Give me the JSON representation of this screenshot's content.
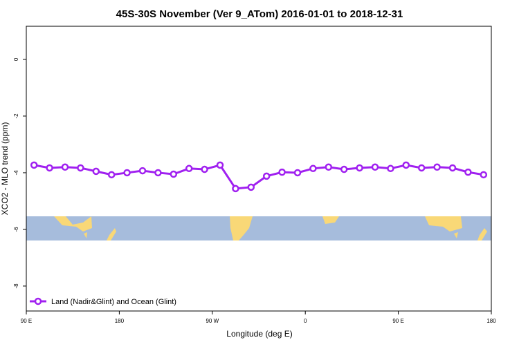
{
  "chart_data": {
    "type": "line",
    "title": "45S-30S November (Ver 9_ATom)   2016-01-01 to 2018-12-31",
    "x_label": "Longitude (deg E)",
    "y_label": "XCO2 - MLO trend (ppm)",
    "xlim": [
      90,
      540
    ],
    "ylim": [
      -8.88,
      1.17
    ],
    "xticks": [
      {
        "value": 90,
        "label": "90 E"
      },
      {
        "value": 180,
        "label": "180"
      },
      {
        "value": 270,
        "label": "90 W"
      },
      {
        "value": 360,
        "label": "0"
      },
      {
        "value": 450,
        "label": "90 E"
      },
      {
        "value": 540,
        "label": "180"
      }
    ],
    "yticks": [
      0,
      -2,
      -4,
      -6,
      -8
    ],
    "x": [
      97.5,
      112.5,
      127.5,
      142.5,
      157.5,
      172.5,
      187.5,
      202.5,
      217.5,
      232.5,
      247.5,
      262.5,
      277.5,
      292.5,
      307.5,
      322.5,
      337.5,
      352.5,
      367.5,
      382.5,
      397.5,
      412.5,
      427.5,
      442.5,
      457.5,
      472.5,
      487.5,
      502.5,
      517.5,
      532.5
    ],
    "series": [
      {
        "name": "Land (Nadir&Glint) and Ocean (Glint)",
        "color": "#a020f0",
        "values": [
          -3.73,
          -3.83,
          -3.8,
          -3.83,
          -3.95,
          -4.07,
          -4.0,
          -3.93,
          -4.0,
          -4.05,
          -3.85,
          -3.88,
          -3.73,
          -4.56,
          -4.51,
          -4.12,
          -3.98,
          -4.0,
          -3.85,
          -3.8,
          -3.88,
          -3.83,
          -3.8,
          -3.85,
          -3.73,
          -3.83,
          -3.8,
          -3.83,
          -3.98,
          -4.07
        ]
      }
    ],
    "legend": "bottom-left"
  }
}
